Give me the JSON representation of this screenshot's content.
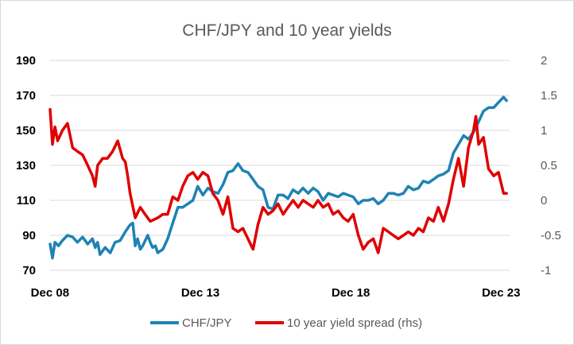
{
  "chart_data": {
    "type": "line",
    "title": "CHF/JPY and 10 year yields",
    "x_tick_labels": [
      "Dec 08",
      "Dec 13",
      "Dec 18",
      "Dec 23"
    ],
    "x_range": [
      2008.92,
      2024.2
    ],
    "y_left": {
      "ticks": [
        "70",
        "90",
        "110",
        "130",
        "150",
        "170",
        "190"
      ],
      "range": [
        70,
        190
      ]
    },
    "y_right": {
      "ticks": [
        "-1",
        "-0.5",
        "0",
        "0.5",
        "1",
        "1.5",
        "2"
      ],
      "range": [
        -1,
        2
      ]
    },
    "grid": "horizontal",
    "legend_position": "bottom",
    "series": [
      {
        "name": "CHF/JPY",
        "axis": "left",
        "color": "#1f82b4",
        "points": [
          [
            2008.92,
            85
          ],
          [
            2009.0,
            77
          ],
          [
            2009.08,
            86
          ],
          [
            2009.2,
            84
          ],
          [
            2009.33,
            87
          ],
          [
            2009.5,
            90
          ],
          [
            2009.67,
            89
          ],
          [
            2009.83,
            86
          ],
          [
            2010.0,
            89
          ],
          [
            2010.17,
            85
          ],
          [
            2010.33,
            88
          ],
          [
            2010.42,
            83
          ],
          [
            2010.5,
            86
          ],
          [
            2010.58,
            79
          ],
          [
            2010.75,
            83
          ],
          [
            2010.92,
            80
          ],
          [
            2011.08,
            86
          ],
          [
            2011.25,
            87
          ],
          [
            2011.42,
            92
          ],
          [
            2011.58,
            96
          ],
          [
            2011.67,
            97
          ],
          [
            2011.75,
            84
          ],
          [
            2011.83,
            88
          ],
          [
            2011.92,
            82
          ],
          [
            2012.0,
            84
          ],
          [
            2012.17,
            90
          ],
          [
            2012.25,
            86
          ],
          [
            2012.33,
            83
          ],
          [
            2012.42,
            84
          ],
          [
            2012.5,
            80
          ],
          [
            2012.67,
            82
          ],
          [
            2012.83,
            88
          ],
          [
            2013.0,
            97
          ],
          [
            2013.17,
            106
          ],
          [
            2013.33,
            106
          ],
          [
            2013.5,
            108
          ],
          [
            2013.67,
            110
          ],
          [
            2013.83,
            118
          ],
          [
            2014.0,
            113
          ],
          [
            2014.17,
            117
          ],
          [
            2014.33,
            115
          ],
          [
            2014.5,
            114
          ],
          [
            2014.67,
            119
          ],
          [
            2014.83,
            126
          ],
          [
            2015.0,
            127
          ],
          [
            2015.17,
            131
          ],
          [
            2015.33,
            127
          ],
          [
            2015.5,
            126
          ],
          [
            2015.67,
            122
          ],
          [
            2015.83,
            118
          ],
          [
            2016.0,
            116
          ],
          [
            2016.17,
            106
          ],
          [
            2016.33,
            105
          ],
          [
            2016.5,
            113
          ],
          [
            2016.67,
            113
          ],
          [
            2016.83,
            111
          ],
          [
            2017.0,
            116
          ],
          [
            2017.17,
            114
          ],
          [
            2017.33,
            117
          ],
          [
            2017.5,
            114
          ],
          [
            2017.67,
            117
          ],
          [
            2017.83,
            115
          ],
          [
            2018.0,
            110
          ],
          [
            2018.17,
            114
          ],
          [
            2018.33,
            113
          ],
          [
            2018.5,
            112
          ],
          [
            2018.67,
            114
          ],
          [
            2018.83,
            113
          ],
          [
            2019.0,
            112
          ],
          [
            2019.17,
            108
          ],
          [
            2019.33,
            110
          ],
          [
            2019.5,
            110
          ],
          [
            2019.67,
            111
          ],
          [
            2019.83,
            108
          ],
          [
            2020.0,
            110
          ],
          [
            2020.17,
            114
          ],
          [
            2020.33,
            114
          ],
          [
            2020.5,
            113
          ],
          [
            2020.67,
            114
          ],
          [
            2020.83,
            118
          ],
          [
            2021.0,
            116
          ],
          [
            2021.17,
            117
          ],
          [
            2021.33,
            121
          ],
          [
            2021.5,
            120
          ],
          [
            2021.67,
            122
          ],
          [
            2021.83,
            124
          ],
          [
            2022.0,
            125
          ],
          [
            2022.17,
            127
          ],
          [
            2022.33,
            137
          ],
          [
            2022.5,
            142
          ],
          [
            2022.67,
            147
          ],
          [
            2022.83,
            145
          ],
          [
            2023.0,
            149
          ],
          [
            2023.17,
            155
          ],
          [
            2023.33,
            161
          ],
          [
            2023.5,
            163
          ],
          [
            2023.67,
            163
          ],
          [
            2023.83,
            166
          ],
          [
            2024.0,
            169
          ],
          [
            2024.1,
            167
          ]
        ]
      },
      {
        "name": "10 year yield spread (rhs)",
        "axis": "right",
        "color": "#e00000",
        "points": [
          [
            2008.92,
            1.3
          ],
          [
            2009.0,
            0.8
          ],
          [
            2009.08,
            1.05
          ],
          [
            2009.17,
            0.85
          ],
          [
            2009.33,
            1.0
          ],
          [
            2009.5,
            1.1
          ],
          [
            2009.67,
            0.75
          ],
          [
            2009.83,
            0.7
          ],
          [
            2010.0,
            0.65
          ],
          [
            2010.17,
            0.5
          ],
          [
            2010.33,
            0.35
          ],
          [
            2010.42,
            0.2
          ],
          [
            2010.5,
            0.5
          ],
          [
            2010.67,
            0.6
          ],
          [
            2010.83,
            0.6
          ],
          [
            2011.0,
            0.7
          ],
          [
            2011.17,
            0.85
          ],
          [
            2011.33,
            0.6
          ],
          [
            2011.42,
            0.55
          ],
          [
            2011.5,
            0.35
          ],
          [
            2011.58,
            0.1
          ],
          [
            2011.75,
            -0.25
          ],
          [
            2011.92,
            -0.1
          ],
          [
            2012.08,
            -0.2
          ],
          [
            2012.25,
            -0.3
          ],
          [
            2012.5,
            -0.25
          ],
          [
            2012.67,
            -0.2
          ],
          [
            2012.83,
            -0.2
          ],
          [
            2013.0,
            0.05
          ],
          [
            2013.17,
            0.0
          ],
          [
            2013.33,
            0.2
          ],
          [
            2013.5,
            0.35
          ],
          [
            2013.67,
            0.4
          ],
          [
            2013.83,
            0.3
          ],
          [
            2014.0,
            0.4
          ],
          [
            2014.17,
            0.35
          ],
          [
            2014.33,
            0.1
          ],
          [
            2014.5,
            0.0
          ],
          [
            2014.67,
            -0.2
          ],
          [
            2014.83,
            0.05
          ],
          [
            2015.0,
            -0.4
          ],
          [
            2015.17,
            -0.45
          ],
          [
            2015.33,
            -0.4
          ],
          [
            2015.5,
            -0.55
          ],
          [
            2015.67,
            -0.7
          ],
          [
            2015.83,
            -0.35
          ],
          [
            2016.0,
            -0.1
          ],
          [
            2016.17,
            -0.2
          ],
          [
            2016.33,
            -0.15
          ],
          [
            2016.5,
            -0.05
          ],
          [
            2016.67,
            -0.2
          ],
          [
            2016.83,
            -0.1
          ],
          [
            2017.0,
            0.0
          ],
          [
            2017.17,
            -0.1
          ],
          [
            2017.33,
            0.0
          ],
          [
            2017.5,
            -0.05
          ],
          [
            2017.67,
            -0.1
          ],
          [
            2017.83,
            0.0
          ],
          [
            2018.0,
            -0.1
          ],
          [
            2018.17,
            -0.05
          ],
          [
            2018.33,
            -0.2
          ],
          [
            2018.5,
            -0.15
          ],
          [
            2018.67,
            -0.25
          ],
          [
            2018.83,
            -0.3
          ],
          [
            2019.0,
            -0.2
          ],
          [
            2019.17,
            -0.5
          ],
          [
            2019.33,
            -0.7
          ],
          [
            2019.5,
            -0.6
          ],
          [
            2019.67,
            -0.55
          ],
          [
            2019.83,
            -0.75
          ],
          [
            2020.0,
            -0.4
          ],
          [
            2020.17,
            -0.45
          ],
          [
            2020.33,
            -0.5
          ],
          [
            2020.5,
            -0.55
          ],
          [
            2020.67,
            -0.5
          ],
          [
            2020.83,
            -0.45
          ],
          [
            2021.0,
            -0.5
          ],
          [
            2021.17,
            -0.4
          ],
          [
            2021.33,
            -0.45
          ],
          [
            2021.5,
            -0.25
          ],
          [
            2021.67,
            -0.3
          ],
          [
            2021.83,
            -0.1
          ],
          [
            2022.0,
            -0.3
          ],
          [
            2022.17,
            -0.05
          ],
          [
            2022.33,
            0.3
          ],
          [
            2022.5,
            0.6
          ],
          [
            2022.67,
            0.2
          ],
          [
            2022.83,
            0.75
          ],
          [
            2023.0,
            1.0
          ],
          [
            2023.08,
            1.2
          ],
          [
            2023.17,
            0.8
          ],
          [
            2023.33,
            0.9
          ],
          [
            2023.5,
            0.45
          ],
          [
            2023.67,
            0.35
          ],
          [
            2023.83,
            0.4
          ],
          [
            2024.0,
            0.1
          ],
          [
            2024.1,
            0.1
          ]
        ]
      }
    ]
  }
}
